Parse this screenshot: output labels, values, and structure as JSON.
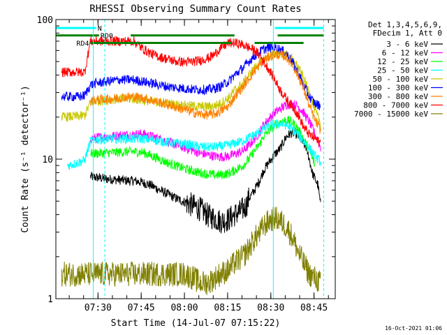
{
  "chart_data": {
    "type": "line",
    "title": "RHESSI Observing Summary Count Rates",
    "xlabel": "Start Time (14-Jul-07 07:15:22)",
    "ylabel": "Count Rate (s⁻¹ detector⁻¹)",
    "y_scale": "log",
    "ylim": [
      1,
      100
    ],
    "xlim_minutes": [
      0,
      97
    ],
    "x_ticks": [
      "07:30",
      "07:45",
      "08:00",
      "08:15",
      "08:30",
      "08:45"
    ],
    "y_ticks": [
      "1",
      "10",
      "100"
    ],
    "legend_header": [
      "Det 1,3,4,5,6,9,",
      "FDecim 1, Att 0"
    ],
    "footer_date": "16-Oct-2021 01:06",
    "flag_labels": {
      "N": "N",
      "RD0": "RD0",
      "RD4": "RD4"
    },
    "series": [
      {
        "name": "3 - 6 keV",
        "color": "#000000",
        "x": [
          12,
          14,
          18,
          22,
          25,
          27,
          30,
          33,
          36,
          39,
          42,
          45,
          48,
          50,
          52,
          53,
          55,
          57,
          58,
          60,
          62,
          64,
          66,
          67,
          69,
          71,
          72,
          74,
          76,
          78,
          79,
          80,
          82,
          84,
          85,
          87,
          88,
          89,
          91,
          92
        ],
        "y": [
          7.5,
          7.4,
          7.2,
          7.1,
          7.0,
          7.0,
          6.8,
          6.5,
          6.0,
          5.6,
          5.2,
          4.9,
          4.6,
          4.4,
          4.1,
          3.9,
          3.8,
          3.6,
          3.6,
          3.7,
          4.0,
          4.2,
          4.6,
          5.2,
          6.0,
          7.2,
          8.2,
          9.5,
          10.8,
          12.0,
          13.2,
          14.5,
          15.5,
          15.0,
          13.8,
          12.0,
          10.0,
          8.0,
          6.5,
          4.5
        ]
      },
      {
        "name": "6 - 12 keV",
        "color": "#ff00ff",
        "x": [
          12,
          14,
          18,
          22,
          25,
          27,
          30,
          33,
          36,
          39,
          42,
          45,
          48,
          50,
          53,
          55,
          57,
          60,
          62,
          65,
          67,
          69,
          71,
          72,
          74,
          76,
          78,
          80,
          82,
          84,
          86,
          88,
          90,
          92
        ],
        "y": [
          14.0,
          14.2,
          14.5,
          14.8,
          15.0,
          15.0,
          15.2,
          14.6,
          14.0,
          13.3,
          12.6,
          12.0,
          11.5,
          11.0,
          10.7,
          10.5,
          10.4,
          10.5,
          10.8,
          11.5,
          12.5,
          14.0,
          15.8,
          17.5,
          19.5,
          21.5,
          23.0,
          24.5,
          25.0,
          24.0,
          21.5,
          18.5,
          15.0,
          12.0
        ]
      },
      {
        "name": "12 - 25 keV",
        "color": "#00ff00",
        "x": [
          12,
          14,
          18,
          22,
          25,
          27,
          30,
          33,
          36,
          39,
          42,
          45,
          48,
          50,
          53,
          55,
          57,
          60,
          62,
          65,
          67,
          69,
          71,
          72,
          74,
          76,
          78,
          80,
          82,
          84,
          86,
          88,
          90
        ],
        "y": [
          11.0,
          11.0,
          11.1,
          11.2,
          11.3,
          11.3,
          11.2,
          10.6,
          10.0,
          9.4,
          8.9,
          8.5,
          8.2,
          8.0,
          7.8,
          7.7,
          7.7,
          7.9,
          8.3,
          9.0,
          10.0,
          11.5,
          13.0,
          14.5,
          16.0,
          17.5,
          18.5,
          19.0,
          18.5,
          16.5,
          14.0,
          11.5,
          9.0
        ]
      },
      {
        "name": "25 - 50 keV",
        "color": "#00ffff",
        "x": [
          4,
          6,
          8,
          10,
          12,
          14,
          18,
          22,
          25,
          27,
          30,
          33,
          36,
          39,
          42,
          45,
          48,
          50,
          53,
          55,
          57,
          60,
          62,
          65,
          67,
          69,
          71,
          72,
          74,
          76,
          78,
          80,
          82,
          84,
          86,
          88,
          90,
          92
        ],
        "y": [
          9.0,
          9.2,
          9.5,
          9.8,
          13.5,
          13.8,
          14.0,
          14.0,
          14.0,
          14.0,
          14.0,
          13.8,
          13.5,
          13.2,
          13.0,
          12.8,
          12.5,
          12.3,
          12.2,
          12.2,
          12.3,
          12.6,
          13.0,
          13.5,
          14.2,
          15.0,
          15.8,
          16.5,
          17.2,
          17.8,
          18.0,
          17.5,
          16.5,
          15.0,
          13.5,
          12.0,
          10.5,
          9.5
        ]
      },
      {
        "name": "50 - 100 keV",
        "color": "#c8c800",
        "x": [
          2,
          4,
          6,
          8,
          10,
          12,
          14,
          18,
          22,
          25,
          27,
          30,
          33,
          36,
          39,
          42,
          45,
          48,
          50,
          53,
          55,
          57,
          60,
          62,
          65,
          67,
          69,
          71,
          72,
          74,
          76,
          78,
          80,
          82,
          84,
          86,
          88,
          90,
          92
        ],
        "y": [
          20.0,
          20.1,
          20.2,
          20.3,
          20.5,
          25.5,
          26.0,
          26.5,
          27.0,
          27.0,
          27.0,
          26.5,
          26.0,
          25.5,
          25.0,
          24.5,
          24.2,
          24.0,
          23.8,
          23.8,
          24.0,
          25.0,
          27.5,
          31.0,
          35.0,
          40.0,
          45.0,
          49.0,
          52.0,
          55.0,
          57.0,
          57.5,
          56.0,
          52.0,
          46.0,
          38.0,
          30.0,
          22.0,
          18.0
        ]
      },
      {
        "name": "100 - 300 keV",
        "color": "#0000ff",
        "x": [
          2,
          4,
          6,
          8,
          10,
          12,
          14,
          18,
          22,
          25,
          27,
          30,
          33,
          36,
          39,
          42,
          45,
          48,
          50,
          53,
          55,
          57,
          60,
          62,
          65,
          67,
          69,
          71,
          72,
          74,
          76,
          78,
          80,
          82,
          84,
          86,
          88,
          90,
          92
        ],
        "y": [
          28.0,
          28.0,
          28.0,
          28.0,
          28.5,
          34.0,
          35.0,
          36.0,
          37.0,
          37.0,
          37.0,
          36.0,
          35.0,
          34.0,
          33.0,
          32.5,
          32.0,
          31.5,
          31.5,
          31.5,
          32.0,
          33.0,
          36.0,
          40.0,
          45.0,
          50.0,
          55.0,
          59.0,
          61.0,
          63.0,
          63.0,
          61.0,
          57.0,
          50.0,
          42.0,
          34.0,
          28.0,
          25.0,
          24.0
        ]
      },
      {
        "name": "300 - 800 keV",
        "color": "#ff7f00",
        "x": [
          12,
          14,
          18,
          22,
          25,
          27,
          30,
          33,
          36,
          39,
          42,
          45,
          48,
          50,
          53,
          55,
          57,
          60,
          62,
          65,
          67,
          69,
          71,
          72,
          74,
          76,
          78,
          80,
          82,
          84,
          86,
          88,
          90,
          92
        ],
        "y": [
          26.0,
          26.5,
          27.0,
          27.5,
          28.0,
          28.0,
          27.5,
          26.5,
          25.5,
          24.5,
          23.5,
          22.5,
          21.5,
          21.0,
          20.8,
          21.0,
          22.0,
          24.0,
          28.0,
          33.0,
          38.0,
          43.0,
          48.0,
          51.0,
          54.0,
          56.0,
          56.0,
          54.0,
          48.0,
          40.0,
          32.0,
          24.0,
          19.0,
          16.0
        ]
      },
      {
        "name": "800 - 7000 keV",
        "color": "#ff0000",
        "x": [
          2,
          4,
          6,
          8,
          10,
          12,
          14,
          18,
          22,
          25,
          27,
          30,
          33,
          36,
          39,
          42,
          45,
          48,
          50,
          53,
          55,
          57,
          60,
          62,
          65,
          67,
          69,
          71,
          72,
          74,
          76,
          78,
          80,
          82,
          84,
          86,
          88,
          90,
          92
        ],
        "y": [
          42.0,
          42.0,
          42.0,
          42.0,
          42.0,
          70.0,
          70.0,
          70.0,
          70.0,
          70.0,
          70.0,
          62.0,
          57.0,
          54.0,
          52.0,
          50.0,
          49.5,
          50.0,
          51.0,
          53.0,
          56.0,
          62.0,
          68.0,
          68.0,
          66.0,
          63.0,
          60.0,
          55.0,
          50.0,
          44.0,
          37.0,
          31.0,
          27.0,
          24.0,
          21.0,
          17.0,
          15.0,
          14.0,
          13.0
        ]
      },
      {
        "name": "7000 - 15000 keV",
        "color": "#808000",
        "x": [
          2,
          4,
          6,
          8,
          10,
          12,
          14,
          18,
          22,
          25,
          27,
          30,
          33,
          36,
          39,
          42,
          45,
          48,
          50,
          53,
          55,
          57,
          60,
          62,
          65,
          67,
          69,
          71,
          72,
          74,
          76,
          78,
          80,
          82,
          84,
          86,
          88,
          90,
          92
        ],
        "y": [
          1.5,
          1.5,
          1.5,
          1.5,
          1.5,
          1.5,
          1.5,
          1.5,
          1.5,
          1.5,
          1.5,
          1.5,
          1.5,
          1.5,
          1.5,
          1.5,
          1.5,
          1.4,
          1.3,
          1.3,
          1.4,
          1.5,
          1.6,
          1.8,
          2.0,
          2.3,
          2.7,
          3.0,
          3.3,
          3.6,
          3.8,
          3.6,
          3.3,
          2.8,
          2.2,
          1.8,
          1.5,
          1.4,
          1.3
        ]
      }
    ],
    "flag_bars": [
      {
        "name": "N",
        "color": "#00ffff",
        "level": 87,
        "segments": [
          [
            0,
            14
          ],
          [
            76,
            93
          ]
        ]
      },
      {
        "name": "RD0",
        "color": "#008000",
        "level": 77,
        "segments": [
          [
            0,
            15
          ],
          [
            26,
            62
          ],
          [
            77,
            93
          ]
        ]
      },
      {
        "name": "RD4",
        "color": "#008000",
        "level": 68,
        "segments": [
          [
            12,
            61
          ],
          [
            69,
            86
          ]
        ]
      }
    ],
    "vertical_markers": [
      {
        "x": 13,
        "color": "#00ffff",
        "style": "solid"
      },
      {
        "x": 17,
        "color": "#00ffff",
        "style": "dashed"
      },
      {
        "x": 75.5,
        "color": "#00ffff",
        "style": "solid"
      },
      {
        "x": 93,
        "color": "#00ffff",
        "style": "dashed"
      }
    ]
  }
}
